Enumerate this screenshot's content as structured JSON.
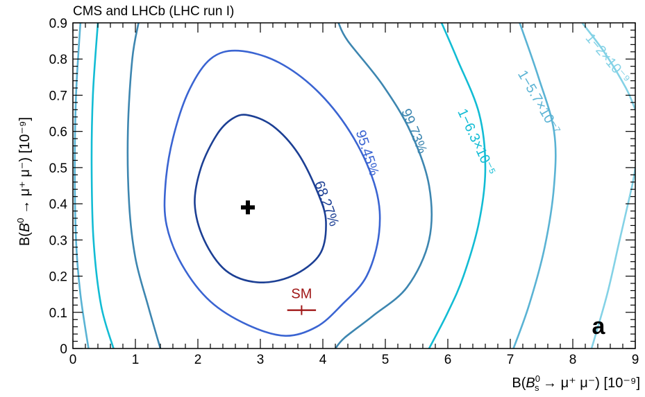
{
  "chart_data": {
    "type": "contour",
    "title": "CMS and LHCb (LHC run I)",
    "panel_label": "a",
    "xlabel": {
      "pre": "B(",
      "bsym": "B",
      "sup": "0",
      "sub": "s",
      "post": " → μ⁺ μ⁻) [10⁻⁹]"
    },
    "ylabel": {
      "pre": "B(",
      "bsym": "B",
      "sup": "0",
      "post": " → μ⁺ μ⁻) [10⁻⁹]"
    },
    "xlim": [
      0,
      9
    ],
    "ylim": [
      0,
      0.9
    ],
    "xticks": [
      0,
      1,
      2,
      3,
      4,
      5,
      6,
      7,
      8,
      9
    ],
    "yticks": [
      0,
      0.1,
      0.2,
      0.3,
      0.4,
      0.5,
      0.6,
      0.7,
      0.8,
      0.9
    ],
    "ytick_labels": [
      "0",
      "0.1",
      "0.2",
      "0.3",
      "0.4",
      "0.5",
      "0.6",
      "0.7",
      "0.8",
      "0.9"
    ],
    "best_fit": {
      "x": 2.8,
      "y": 0.39
    },
    "sm_point": {
      "label": "SM",
      "x": 3.66,
      "y": 0.106,
      "xerr": 0.23
    },
    "colors": {
      "sm": "#a01818",
      "best_fit": "#000000",
      "frame": "#000000"
    },
    "contours": [
      {
        "label": "68.27%",
        "color": "#1c3f94",
        "closed": true,
        "points": [
          [
            2.8,
            0.645
          ],
          [
            3.2,
            0.615
          ],
          [
            3.6,
            0.54
          ],
          [
            3.92,
            0.43
          ],
          [
            4.05,
            0.35
          ],
          [
            3.95,
            0.26
          ],
          [
            3.5,
            0.2
          ],
          [
            2.95,
            0.183
          ],
          [
            2.45,
            0.215
          ],
          [
            2.1,
            0.3
          ],
          [
            1.95,
            0.4
          ],
          [
            2.05,
            0.5
          ],
          [
            2.3,
            0.59
          ],
          [
            2.55,
            0.635
          ]
        ]
      },
      {
        "label": "95.45%",
        "color": "#3a64d2",
        "closed": true,
        "points": [
          [
            2.65,
            0.823
          ],
          [
            3.3,
            0.79
          ],
          [
            3.95,
            0.705
          ],
          [
            4.5,
            0.58
          ],
          [
            4.85,
            0.44
          ],
          [
            4.9,
            0.32
          ],
          [
            4.7,
            0.2
          ],
          [
            4.3,
            0.12
          ],
          [
            3.9,
            0.06
          ],
          [
            3.4,
            0.035
          ],
          [
            2.8,
            0.065
          ],
          [
            2.2,
            0.13
          ],
          [
            1.75,
            0.23
          ],
          [
            1.5,
            0.34
          ],
          [
            1.48,
            0.45
          ],
          [
            1.6,
            0.58
          ],
          [
            1.85,
            0.71
          ],
          [
            2.2,
            0.8
          ]
        ]
      },
      {
        "label": "99.73%",
        "color": "#3d86b0",
        "closed": false,
        "points": [
          [
            1.05,
            0.9
          ],
          [
            0.95,
            0.8
          ],
          [
            0.88,
            0.6
          ],
          [
            0.9,
            0.4
          ],
          [
            1.0,
            0.25
          ],
          [
            1.2,
            0.12
          ],
          [
            1.4,
            0.0
          ]
        ]
      },
      {
        "label": "",
        "color": "#3d86b0",
        "closed": false,
        "points": [
          [
            4.2,
            0.0
          ],
          [
            4.35,
            0.03
          ],
          [
            4.8,
            0.09
          ],
          [
            5.35,
            0.17
          ],
          [
            5.7,
            0.3
          ],
          [
            5.7,
            0.45
          ],
          [
            5.4,
            0.6
          ],
          [
            4.95,
            0.73
          ],
          [
            4.4,
            0.85
          ],
          [
            4.25,
            0.9
          ]
        ]
      },
      {
        "label": "1−6.3×10⁻⁵",
        "color": "#12bcd4",
        "closed": false,
        "points": [
          [
            0.4,
            0.9
          ],
          [
            0.32,
            0.7
          ],
          [
            0.3,
            0.5
          ],
          [
            0.33,
            0.3
          ],
          [
            0.45,
            0.12
          ],
          [
            0.65,
            0.0
          ]
        ]
      },
      {
        "label": "",
        "color": "#12bcd4",
        "closed": false,
        "points": [
          [
            5.7,
            0.0
          ],
          [
            6.0,
            0.1
          ],
          [
            6.25,
            0.2
          ],
          [
            6.5,
            0.35
          ],
          [
            6.6,
            0.5
          ],
          [
            6.5,
            0.65
          ],
          [
            6.15,
            0.8
          ],
          [
            5.9,
            0.9
          ]
        ]
      },
      {
        "label": "1−5.7×10⁻⁷",
        "color": "#5ab3d4",
        "closed": false,
        "points": [
          [
            0.12,
            0.9
          ],
          [
            0.05,
            0.7
          ],
          [
            0.03,
            0.5
          ],
          [
            0.05,
            0.3
          ],
          [
            0.12,
            0.15
          ],
          [
            0.25,
            0.0
          ]
        ]
      },
      {
        "label": "",
        "color": "#5ab3d4",
        "closed": false,
        "points": [
          [
            7.05,
            0.0
          ],
          [
            7.3,
            0.12
          ],
          [
            7.55,
            0.28
          ],
          [
            7.7,
            0.45
          ],
          [
            7.7,
            0.6
          ],
          [
            7.45,
            0.75
          ],
          [
            7.15,
            0.9
          ]
        ]
      },
      {
        "label": "1−2×10⁻⁹",
        "color": "#84d2e6",
        "closed": false,
        "points": [
          [
            8.3,
            0.0
          ],
          [
            8.55,
            0.15
          ],
          [
            8.75,
            0.3
          ],
          [
            8.95,
            0.45
          ],
          [
            9.0,
            0.5
          ]
        ]
      },
      {
        "label": "",
        "color": "#84d2e6",
        "closed": false,
        "points": [
          [
            8.15,
            0.9
          ],
          [
            8.5,
            0.82
          ],
          [
            8.85,
            0.72
          ],
          [
            9.0,
            0.66
          ]
        ]
      }
    ]
  }
}
